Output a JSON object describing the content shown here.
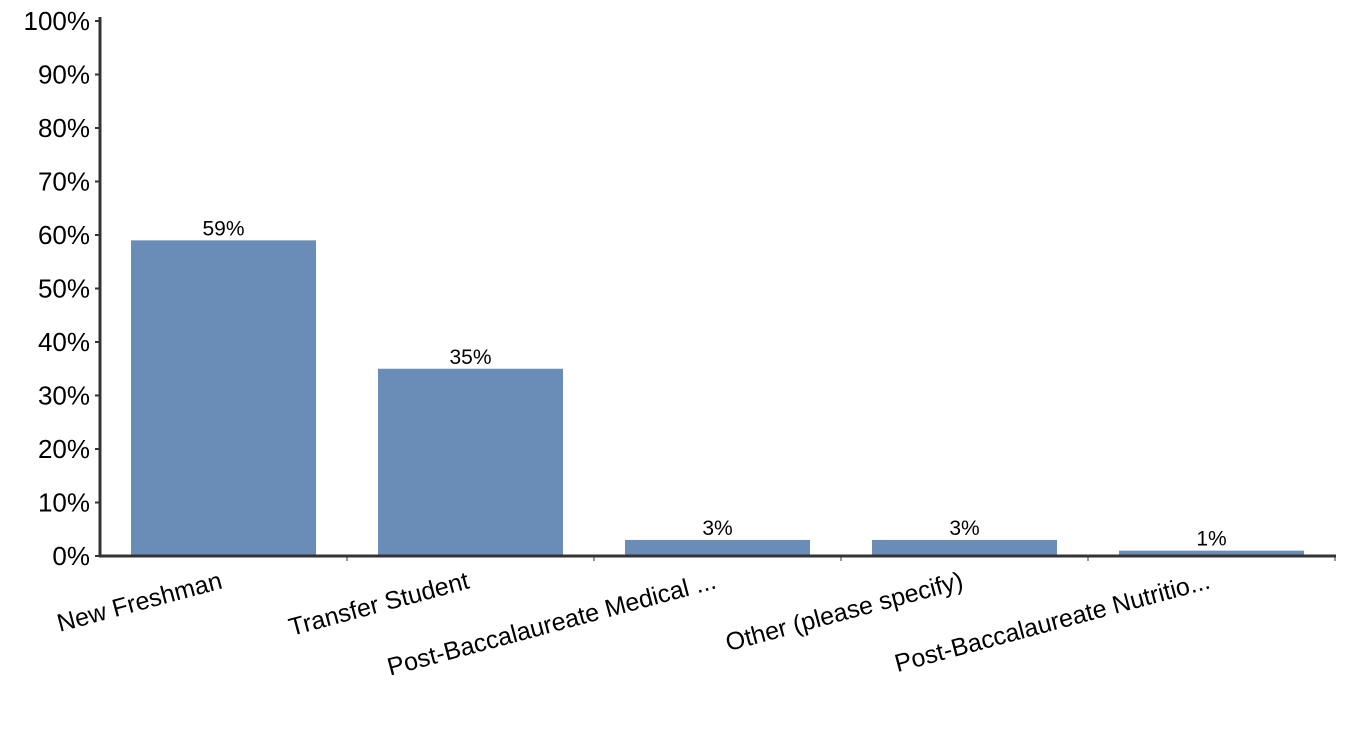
{
  "chart_data": {
    "type": "bar",
    "title": "",
    "xlabel": "",
    "ylabel": "",
    "categories": [
      "New Freshman",
      "Transfer Student",
      "Post-Baccalaureate Medical ...",
      "Other (please specify)",
      "Post-Baccalaureate Nutritio..."
    ],
    "values": [
      59,
      35,
      3,
      3,
      1
    ],
    "data_labels": [
      "59%",
      "35%",
      "3%",
      "3%",
      "1%"
    ],
    "ylim": [
      0,
      100
    ],
    "yticks": [
      "0%",
      "10%",
      "20%",
      "30%",
      "40%",
      "50%",
      "60%",
      "70%",
      "80%",
      "90%",
      "100%"
    ],
    "grid": false,
    "legend": "none",
    "bar_color": "#6a8db8",
    "axis_color": "#333333"
  }
}
